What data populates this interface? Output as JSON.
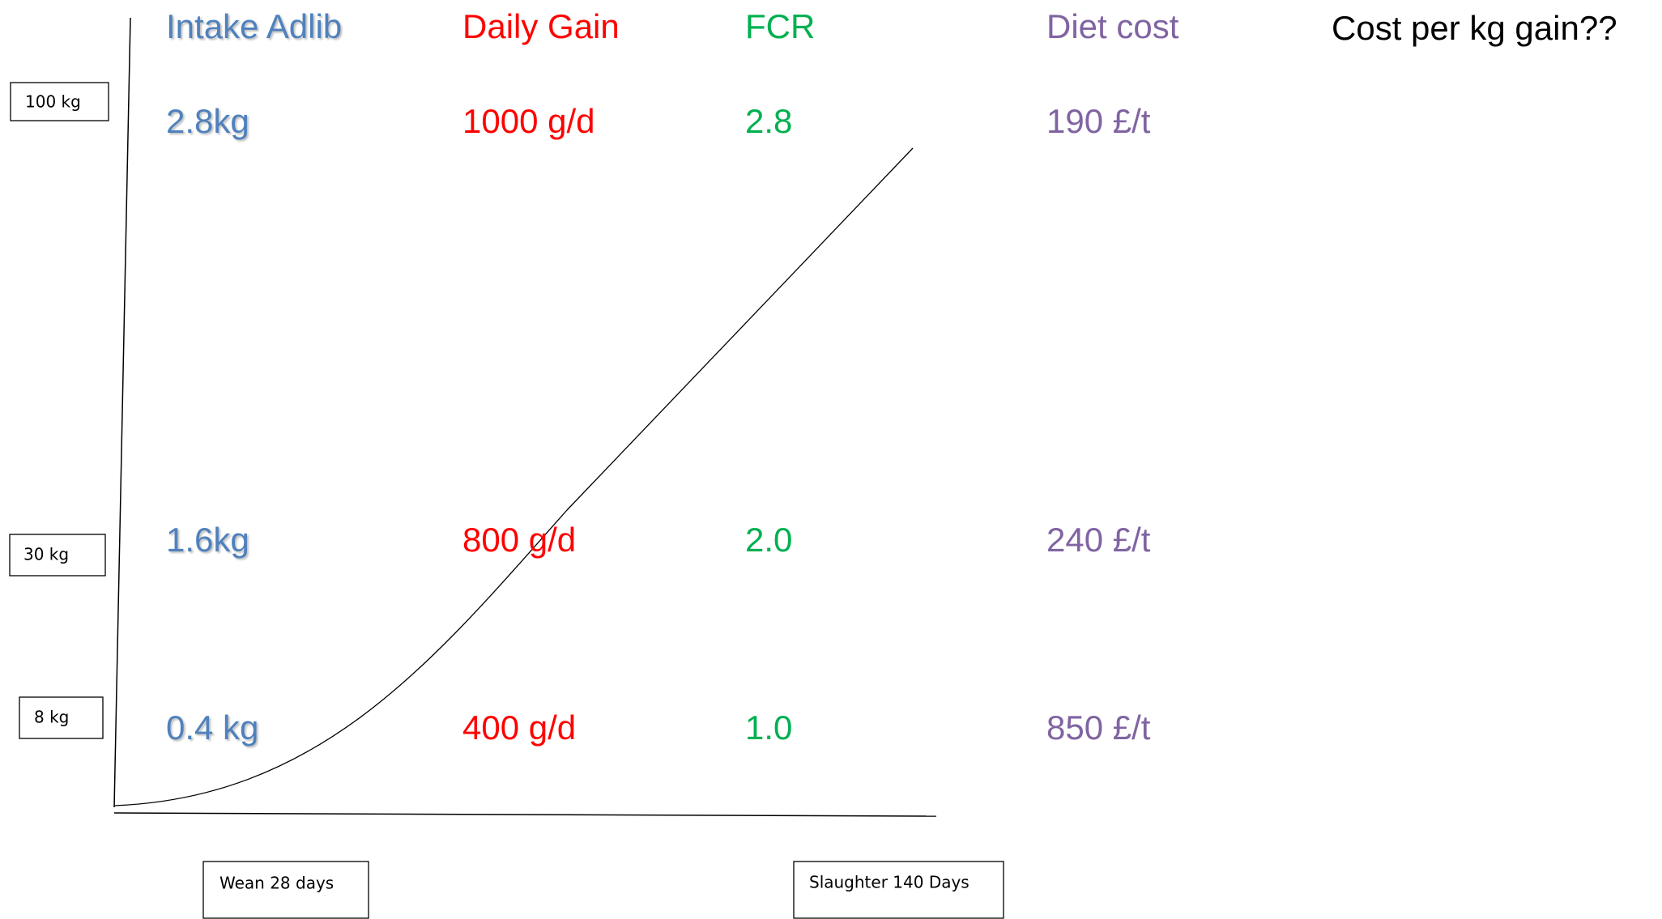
{
  "columns": [
    {
      "header": "Intake Adlib",
      "values": [
        "2.8kg",
        "1.6kg",
        "0.4 kg"
      ]
    },
    {
      "header": "Daily Gain",
      "values": [
        "1000 g/d",
        "800 g/d",
        "400 g/d"
      ]
    },
    {
      "header": "FCR",
      "values": [
        "2.8",
        "2.0",
        "1.0"
      ]
    },
    {
      "header": "Diet cost",
      "values": [
        "190 £/t",
        "240 £/t",
        "850 £/t"
      ]
    }
  ],
  "question": "Cost per kg gain??",
  "weight_labels": [
    "100 kg",
    "30 kg",
    "8 kg"
  ],
  "time_labels": [
    "Wean 28 days",
    "Slaughter 140 Days"
  ]
}
